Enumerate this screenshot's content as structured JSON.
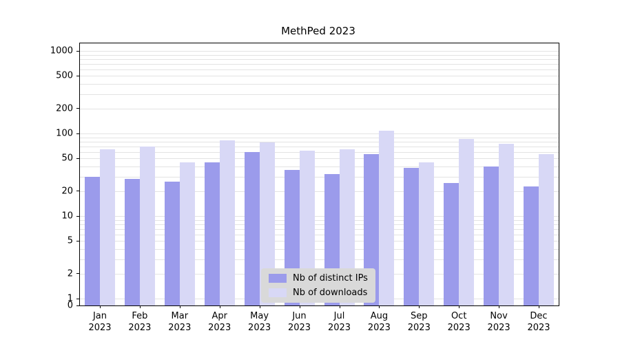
{
  "chart_data": {
    "type": "bar",
    "title": "MethPed 2023",
    "categories": [
      "Jan",
      "Feb",
      "Mar",
      "Apr",
      "May",
      "Jun",
      "Jul",
      "Aug",
      "Sep",
      "Oct",
      "Nov",
      "Dec"
    ],
    "category_year": "2023",
    "series": [
      {
        "name": "Nb of distinct IPs",
        "color": "#9b9beb",
        "values": [
          30,
          28,
          26,
          45,
          60,
          36,
          32,
          56,
          38,
          25,
          40,
          23
        ]
      },
      {
        "name": "Nb of downloads",
        "color": "#d8d8f6",
        "values": [
          65,
          69,
          45,
          82,
          78,
          62,
          64,
          108,
          45,
          86,
          75,
          56
        ]
      }
    ],
    "y_ticks": [
      0,
      1,
      2,
      5,
      10,
      20,
      50,
      100,
      200,
      500,
      1000
    ],
    "y_scale": "symlog",
    "ylim": [
      0,
      1000
    ],
    "xlabel": "",
    "ylabel": "",
    "grid": true,
    "legend_position": "lower center"
  },
  "colors": {
    "grid": "#e3e3e3",
    "axis": "#000000",
    "legend_bg": "#d9d9d9"
  }
}
